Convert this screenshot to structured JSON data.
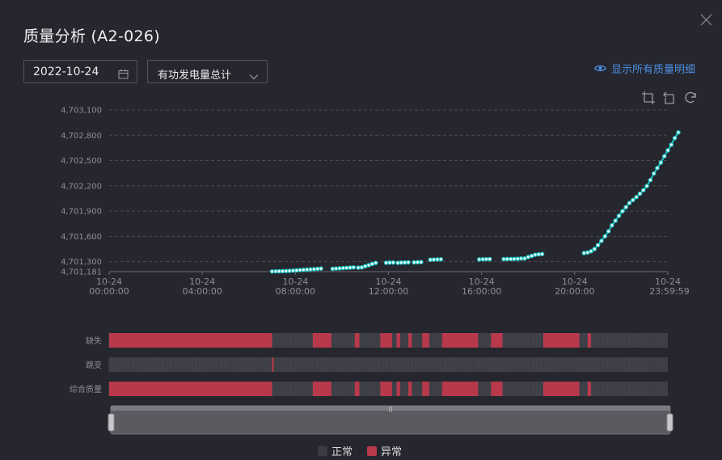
{
  "dialog": {
    "title": "质量分析 (A2-026)"
  },
  "controls": {
    "date_value": "2022-10-24",
    "metric_value": "有功发电量总计",
    "show_all_label": "显示所有质量明细"
  },
  "colors": {
    "line": "#22c7c7",
    "normal": "#3b3b43",
    "abnormal": "#b8394b",
    "accent": "#4a8fe0"
  },
  "chart_data": {
    "type": "line",
    "ylim": [
      4701181,
      4703100
    ],
    "yticks": [
      4703100,
      4702800,
      4702500,
      4702200,
      4701900,
      4701600,
      4701300,
      4701181
    ],
    "ytick_labels": [
      "4,703,100",
      "4,702,800",
      "4,702,500",
      "4,702,200",
      "4,701,900",
      "4,701,600",
      "4,701,300",
      "4,701,181"
    ],
    "xlim": [
      0,
      24
    ],
    "xticks": [
      {
        "h": 0,
        "l1": "10-24",
        "l2": "00:00:00"
      },
      {
        "h": 4,
        "l1": "10-24",
        "l2": "04:00:00"
      },
      {
        "h": 8,
        "l1": "10-24",
        "l2": "08:00:00"
      },
      {
        "h": 12,
        "l1": "10-24",
        "l2": "12:00:00"
      },
      {
        "h": 16,
        "l1": "10-24",
        "l2": "16:00:00"
      },
      {
        "h": 20,
        "l1": "10-24",
        "l2": "20:00:00"
      },
      {
        "h": 24,
        "l1": "10-24",
        "l2": "23:59:59"
      }
    ],
    "segments": [
      [
        [
          7.0,
          4701184
        ],
        [
          7.15,
          4701185
        ],
        [
          7.3,
          4701186
        ],
        [
          7.45,
          4701187
        ],
        [
          7.6,
          4701189
        ],
        [
          7.75,
          4701191
        ],
        [
          7.9,
          4701193
        ],
        [
          8.05,
          4701196
        ],
        [
          8.2,
          4701199
        ],
        [
          8.35,
          4701202
        ],
        [
          8.5,
          4701205
        ],
        [
          8.65,
          4701208
        ],
        [
          8.8,
          4701211
        ],
        [
          8.95,
          4701214
        ],
        [
          9.1,
          4701217
        ]
      ],
      [
        [
          9.6,
          4701215
        ],
        [
          9.75,
          4701217
        ],
        [
          9.9,
          4701220
        ],
        [
          10.05,
          4701223
        ],
        [
          10.2,
          4701226
        ],
        [
          10.35,
          4701229
        ],
        [
          10.5,
          4701232
        ]
      ],
      [
        [
          10.7,
          4701228
        ],
        [
          10.85,
          4701232
        ],
        [
          11.0,
          4701245
        ],
        [
          11.15,
          4701258
        ],
        [
          11.3,
          4701272
        ],
        [
          11.45,
          4701285
        ]
      ],
      [
        [
          11.9,
          4701287
        ],
        [
          12.05,
          4701288
        ],
        [
          12.2,
          4701289
        ]
      ],
      [
        [
          12.4,
          4701286
        ],
        [
          12.55,
          4701288
        ],
        [
          12.7,
          4701289
        ],
        [
          12.85,
          4701291
        ]
      ],
      [
        [
          13.1,
          4701290
        ],
        [
          13.25,
          4701292
        ],
        [
          13.4,
          4701294
        ]
      ],
      [
        [
          13.8,
          4701322
        ],
        [
          13.95,
          4701324
        ],
        [
          14.1,
          4701326
        ],
        [
          14.25,
          4701327
        ]
      ],
      [
        [
          15.9,
          4701326
        ],
        [
          16.05,
          4701328
        ],
        [
          16.2,
          4701329
        ],
        [
          16.35,
          4701330
        ]
      ],
      [
        [
          16.95,
          4701330
        ],
        [
          17.1,
          4701331
        ],
        [
          17.25,
          4701331
        ],
        [
          17.4,
          4701332
        ],
        [
          17.55,
          4701334
        ],
        [
          17.7,
          4701336
        ],
        [
          17.85,
          4701337
        ],
        [
          18.0,
          4701355
        ],
        [
          18.15,
          4701368
        ],
        [
          18.3,
          4701382
        ],
        [
          18.45,
          4701386
        ],
        [
          18.6,
          4701390
        ]
      ],
      [
        [
          20.4,
          4701402
        ],
        [
          20.55,
          4701407
        ],
        [
          20.7,
          4701423
        ],
        [
          20.85,
          4701450
        ],
        [
          21.0,
          4701496
        ],
        [
          21.15,
          4701547
        ],
        [
          21.3,
          4701600
        ],
        [
          21.45,
          4701660
        ],
        [
          21.6,
          4701731
        ],
        [
          21.75,
          4701786
        ],
        [
          21.9,
          4701844
        ],
        [
          22.05,
          4701898
        ],
        [
          22.2,
          4701947
        ],
        [
          22.35,
          4701996
        ],
        [
          22.5,
          4702031
        ],
        [
          22.65,
          4702066
        ],
        [
          22.8,
          4702106
        ],
        [
          22.95,
          4702148
        ],
        [
          23.1,
          4702197
        ],
        [
          23.25,
          4702268
        ],
        [
          23.4,
          4702346
        ],
        [
          23.55,
          4702411
        ],
        [
          23.7,
          4702475
        ],
        [
          23.85,
          4702551
        ],
        [
          24.0,
          4702620
        ],
        [
          24.15,
          4702687
        ],
        [
          24.3,
          4702767
        ],
        [
          24.45,
          4702833
        ]
      ]
    ]
  },
  "quality_tracks": {
    "rows": [
      {
        "label": "缺失",
        "abnormal": [
          [
            0,
            7.0
          ],
          [
            8.75,
            9.55
          ],
          [
            10.55,
            10.75
          ],
          [
            11.65,
            12.15
          ],
          [
            12.35,
            12.5
          ],
          [
            12.85,
            13.0
          ],
          [
            13.45,
            13.75
          ],
          [
            14.3,
            15.85
          ],
          [
            16.4,
            16.9
          ],
          [
            18.65,
            20.2
          ],
          [
            20.55,
            20.7
          ]
        ]
      },
      {
        "label": "跳变",
        "abnormal": [
          [
            7.0,
            7.07
          ]
        ]
      },
      {
        "label": "综合质量",
        "abnormal": [
          [
            0,
            7.0
          ],
          [
            8.75,
            9.55
          ],
          [
            10.55,
            10.75
          ],
          [
            11.65,
            12.15
          ],
          [
            12.35,
            12.5
          ],
          [
            12.85,
            13.0
          ],
          [
            13.45,
            13.75
          ],
          [
            14.3,
            15.85
          ],
          [
            16.4,
            16.9
          ],
          [
            18.65,
            20.2
          ],
          [
            20.55,
            20.7
          ]
        ]
      }
    ]
  },
  "legend": {
    "normal_label": "正常",
    "abnormal_label": "异常"
  }
}
